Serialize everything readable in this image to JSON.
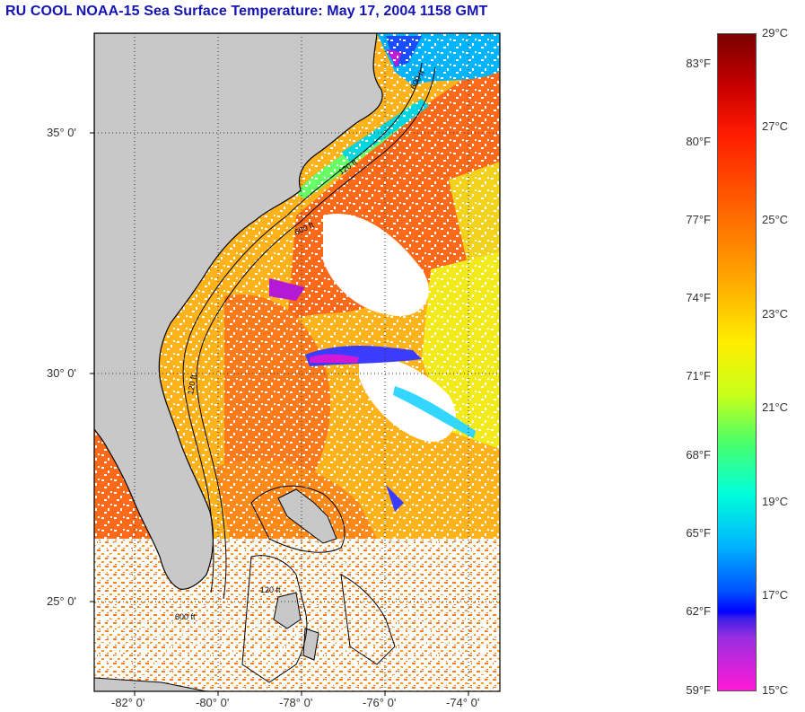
{
  "title": "RU COOL  NOAA-15  Sea Surface Temperature:  May 17, 2004 1158 GMT",
  "latitude_labels": [
    "35° 0'",
    "30° 0'",
    "25° 0'"
  ],
  "longitude_labels": [
    "-82° 0'",
    "-80° 0'",
    "-78° 0'",
    "-76° 0'",
    "-74° 0'"
  ],
  "colorbar": {
    "fahrenheit_labels": [
      "83°F",
      "80°F",
      "77°F",
      "74°F",
      "71°F",
      "68°F",
      "65°F",
      "62°F",
      "59°F"
    ],
    "celsius_labels": [
      "29°C",
      "27°C",
      "25°C",
      "23°C",
      "21°C",
      "19°C",
      "17°C",
      "15°C"
    ]
  },
  "contour_labels": [
    "600 ft",
    "120 ft",
    "600 ft",
    "120 ft",
    "600 ft",
    "120 ft"
  ],
  "colors": {
    "land": "#c8c8c8",
    "title": "#1414b4",
    "warm": "#ff6a1a",
    "cool": "#00d6e0"
  }
}
